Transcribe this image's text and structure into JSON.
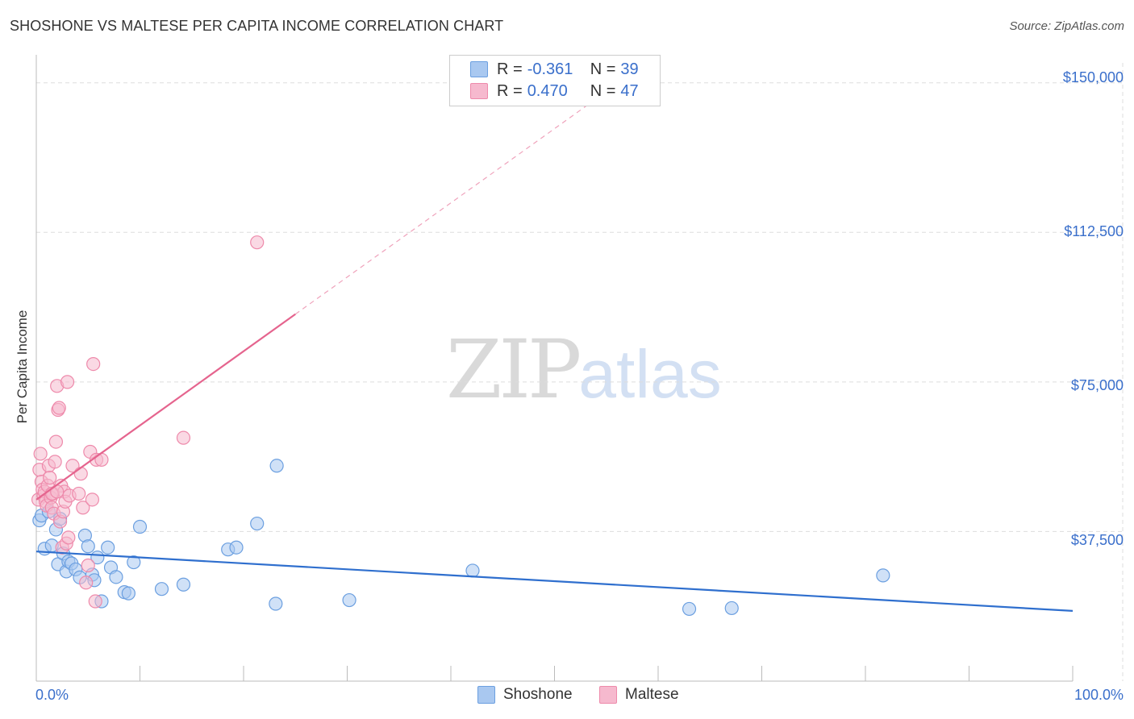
{
  "title": "SHOSHONE VS MALTESE PER CAPITA INCOME CORRELATION CHART",
  "source": "Source: ZipAtlas.com",
  "watermark": {
    "zip": "ZIP",
    "atlas": "atlas"
  },
  "legend": [
    {
      "r_label": "R =",
      "r_value": "-0.361",
      "n_label": "N =",
      "n_value": "39"
    },
    {
      "r_label": "R =",
      "r_value": "0.470",
      "n_label": "N =",
      "n_value": "47"
    }
  ],
  "bottom_legend": {
    "series1": "Shoshone",
    "series2": "Maltese"
  },
  "colors": {
    "shoshone_fill": "#a9c8f0",
    "shoshone_stroke": "#6b9fe0",
    "shoshone_line": "#2f6fce",
    "maltese_fill": "#f6b9ce",
    "maltese_stroke": "#ee8aab",
    "maltese_line": "#e5648e",
    "axis_text": "#3a6fcb",
    "grid": "#dddddd"
  },
  "chart_data": {
    "type": "scatter",
    "title": "SHOSHONE VS MALTESE PER CAPITA INCOME CORRELATION CHART",
    "xlabel": "",
    "ylabel": "Per Capita Income",
    "xlim": [
      0,
      100
    ],
    "ylim": [
      0,
      155000
    ],
    "x_tick_labels": [
      "0.0%",
      "100.0%"
    ],
    "y_ticks": [
      37500,
      75000,
      112500,
      150000
    ],
    "y_tick_labels": [
      "$37,500",
      "$75,000",
      "$112,500",
      "$150,000"
    ],
    "series": [
      {
        "name": "Shoshone",
        "r": -0.361,
        "n": 39,
        "trend": {
          "x0": 0,
          "y0": 32500,
          "x1": 100,
          "y1": 17600,
          "dashed_to": 100
        },
        "points": [
          [
            0.3,
            40300
          ],
          [
            0.5,
            41500
          ],
          [
            0.8,
            33200
          ],
          [
            1.2,
            42500
          ],
          [
            1.5,
            34000
          ],
          [
            1.9,
            38000
          ],
          [
            2.1,
            29300
          ],
          [
            2.3,
            40700
          ],
          [
            2.6,
            32000
          ],
          [
            2.9,
            27500
          ],
          [
            3.1,
            30000
          ],
          [
            3.4,
            29500
          ],
          [
            3.8,
            28000
          ],
          [
            4.2,
            26000
          ],
          [
            4.7,
            36500
          ],
          [
            5.0,
            33800
          ],
          [
            5.4,
            26700
          ],
          [
            5.6,
            25300
          ],
          [
            5.9,
            31000
          ],
          [
            6.3,
            20000
          ],
          [
            6.9,
            33500
          ],
          [
            7.2,
            28500
          ],
          [
            7.7,
            26100
          ],
          [
            8.5,
            22300
          ],
          [
            8.9,
            22000
          ],
          [
            9.4,
            29800
          ],
          [
            10.0,
            38700
          ],
          [
            12.1,
            23100
          ],
          [
            14.2,
            24200
          ],
          [
            18.5,
            33000
          ],
          [
            19.3,
            33500
          ],
          [
            21.3,
            39500
          ],
          [
            23.1,
            19400
          ],
          [
            23.2,
            54000
          ],
          [
            30.2,
            20300
          ],
          [
            42.1,
            27700
          ],
          [
            63.0,
            18100
          ],
          [
            67.1,
            18300
          ],
          [
            81.7,
            26500
          ]
        ]
      },
      {
        "name": "Maltese",
        "r": 0.47,
        "n": 47,
        "trend": {
          "x0": 0,
          "y0": 45500,
          "x1": 25.0,
          "y1": 92000,
          "dashed_to": 53.5
        },
        "points": [
          [
            0.2,
            45500
          ],
          [
            0.3,
            53000
          ],
          [
            0.4,
            57000
          ],
          [
            0.5,
            50000
          ],
          [
            0.6,
            48000
          ],
          [
            0.7,
            46500
          ],
          [
            0.8,
            47500
          ],
          [
            0.9,
            45000
          ],
          [
            1.0,
            44000
          ],
          [
            1.1,
            49000
          ],
          [
            1.2,
            54000
          ],
          [
            1.3,
            51000
          ],
          [
            1.4,
            46000
          ],
          [
            1.5,
            43500
          ],
          [
            1.6,
            47000
          ],
          [
            1.7,
            42000
          ],
          [
            1.8,
            55000
          ],
          [
            1.9,
            60000
          ],
          [
            2.0,
            74000
          ],
          [
            2.1,
            68000
          ],
          [
            2.2,
            68500
          ],
          [
            2.3,
            40000
          ],
          [
            2.4,
            49000
          ],
          [
            2.5,
            33500
          ],
          [
            2.6,
            42500
          ],
          [
            2.7,
            47500
          ],
          [
            2.8,
            45000
          ],
          [
            2.9,
            34500
          ],
          [
            3.0,
            75000
          ],
          [
            3.1,
            36000
          ],
          [
            3.2,
            46500
          ],
          [
            3.5,
            54000
          ],
          [
            4.1,
            47000
          ],
          [
            4.3,
            52000
          ],
          [
            4.5,
            43500
          ],
          [
            4.8,
            24700
          ],
          [
            5.0,
            29000
          ],
          [
            5.2,
            57500
          ],
          [
            5.4,
            45500
          ],
          [
            5.5,
            79500
          ],
          [
            5.7,
            20000
          ],
          [
            5.8,
            55500
          ],
          [
            6.3,
            55500
          ],
          [
            14.2,
            61000
          ],
          [
            21.3,
            110000
          ],
          [
            1.5,
            47000
          ],
          [
            2.0,
            47500
          ]
        ]
      }
    ]
  }
}
